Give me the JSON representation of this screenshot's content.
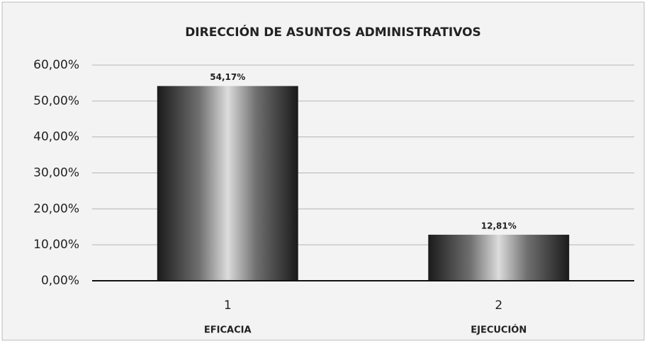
{
  "chart_data": {
    "type": "bar",
    "title": "DIRECCIÓN DE ASUNTOS ADMINISTRATIVOS",
    "categories": [
      "1",
      "2"
    ],
    "category_labels": [
      "EFICACIA",
      "EJECUCIÓN"
    ],
    "values": [
      54.17,
      12.81
    ],
    "value_labels": [
      "54,17%",
      "12,81%"
    ],
    "ylim": [
      0,
      60
    ],
    "yticks": [
      {
        "value": 0,
        "label": "0,00%"
      },
      {
        "value": 10,
        "label": "10,00%"
      },
      {
        "value": 20,
        "label": "20,00%"
      },
      {
        "value": 30,
        "label": "30,00%"
      },
      {
        "value": 40,
        "label": "40,00%"
      },
      {
        "value": 50,
        "label": "50,00%"
      },
      {
        "value": 60,
        "label": "60,00%"
      }
    ],
    "grid": true
  }
}
